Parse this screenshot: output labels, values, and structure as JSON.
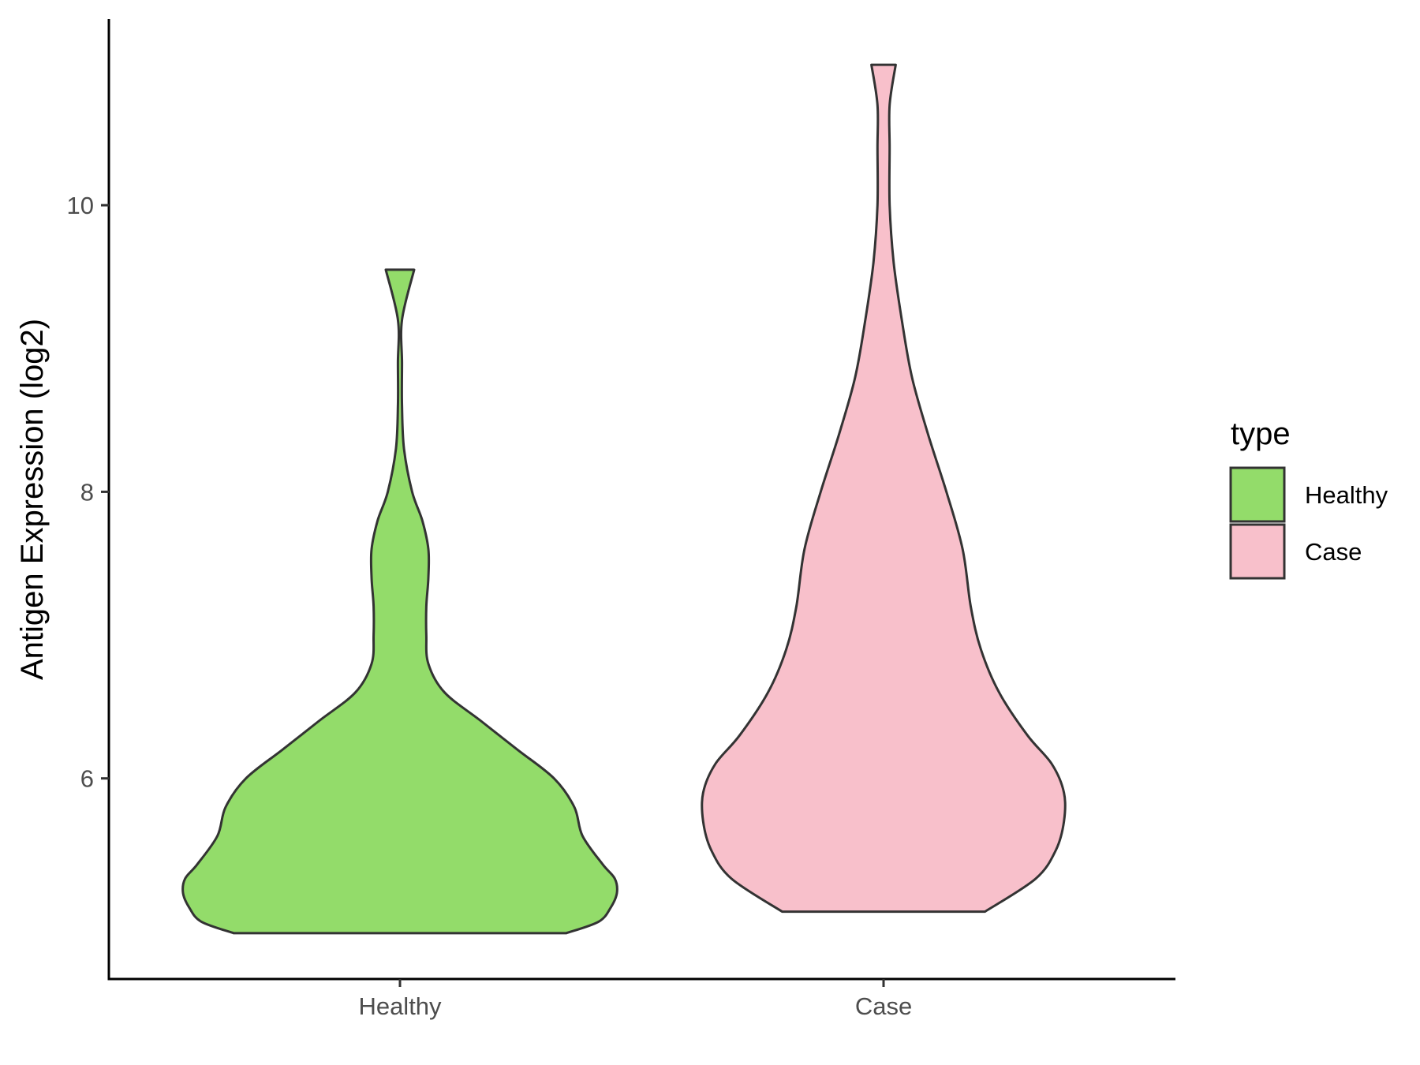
{
  "chart_data": {
    "type": "violin",
    "title": "",
    "xlabel": "",
    "ylabel": "Antigen Expression (log2)",
    "ylim": [
      4.6,
      11.3
    ],
    "yticks": [
      6,
      8,
      10
    ],
    "categories": [
      "Healthy",
      "Case"
    ],
    "series": [
      {
        "name": "Healthy",
        "color": "#93dc6a",
        "y_min": 4.92,
        "y_max": 9.55,
        "density": [
          [
            4.92,
            0.82
          ],
          [
            5.0,
            0.98
          ],
          [
            5.1,
            1.04
          ],
          [
            5.2,
            1.07
          ],
          [
            5.3,
            1.06
          ],
          [
            5.4,
            1.0
          ],
          [
            5.6,
            0.9
          ],
          [
            5.8,
            0.86
          ],
          [
            6.0,
            0.76
          ],
          [
            6.2,
            0.58
          ],
          [
            6.4,
            0.4
          ],
          [
            6.6,
            0.22
          ],
          [
            6.8,
            0.14
          ],
          [
            7.0,
            0.13
          ],
          [
            7.2,
            0.13
          ],
          [
            7.4,
            0.14
          ],
          [
            7.6,
            0.14
          ],
          [
            7.8,
            0.11
          ],
          [
            8.0,
            0.06
          ],
          [
            8.3,
            0.02
          ],
          [
            8.6,
            0.01
          ],
          [
            8.9,
            0.01
          ],
          [
            9.2,
            0.01
          ],
          [
            9.55,
            0.07
          ]
        ]
      },
      {
        "name": "Case",
        "color": "#f8c0cb",
        "y_min": 5.07,
        "y_max": 10.98,
        "density": [
          [
            5.07,
            0.5
          ],
          [
            5.3,
            0.75
          ],
          [
            5.5,
            0.85
          ],
          [
            5.7,
            0.89
          ],
          [
            5.9,
            0.89
          ],
          [
            6.1,
            0.83
          ],
          [
            6.3,
            0.71
          ],
          [
            6.6,
            0.57
          ],
          [
            6.9,
            0.48
          ],
          [
            7.2,
            0.43
          ],
          [
            7.6,
            0.39
          ],
          [
            8.0,
            0.31
          ],
          [
            8.4,
            0.22
          ],
          [
            8.8,
            0.14
          ],
          [
            9.2,
            0.09
          ],
          [
            9.6,
            0.05
          ],
          [
            10.0,
            0.03
          ],
          [
            10.4,
            0.03
          ],
          [
            10.7,
            0.03
          ],
          [
            10.98,
            0.06
          ]
        ]
      }
    ],
    "legend": {
      "title": "type",
      "position": "right",
      "items": [
        {
          "label": "Healthy",
          "color": "#93dc6a"
        },
        {
          "label": "Case",
          "color": "#f8c0cb"
        }
      ]
    },
    "grid": false
  }
}
